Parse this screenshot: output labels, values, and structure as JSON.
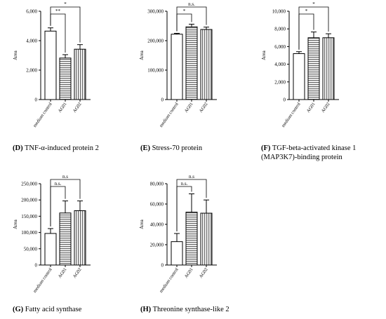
{
  "panels": [
    {
      "letter": "(D)",
      "caption": "TNF-α-induced protein 2",
      "chart_data": {
        "type": "bar",
        "categories": [
          "medium control",
          "AG01",
          "AG02"
        ],
        "values": [
          4650,
          2820,
          3420
        ],
        "errors": [
          220,
          230,
          310
        ],
        "ylabel": "Area",
        "ylim": [
          0,
          6000
        ],
        "yticks": [
          "0",
          "2,000",
          "4,000",
          "6,000"
        ],
        "significance": [
          {
            "from": 0,
            "to": 1,
            "label": "**",
            "level": 1
          },
          {
            "from": 0,
            "to": 2,
            "label": "*",
            "level": 2
          }
        ]
      }
    },
    {
      "letter": "(E)",
      "caption": "Stress-70 protein",
      "chart_data": {
        "type": "bar",
        "categories": [
          "medium control",
          "AG01",
          "AG02"
        ],
        "values": [
          222000,
          247000,
          238000
        ],
        "errors": [
          3000,
          9000,
          8000
        ],
        "ylabel": "Area",
        "ylim": [
          0,
          300000
        ],
        "yticks": [
          "0",
          "100,000",
          "200,000",
          "300,000"
        ],
        "significance": [
          {
            "from": 0,
            "to": 1,
            "label": "*",
            "level": 1
          },
          {
            "from": 0,
            "to": 2,
            "label": "n.s.",
            "level": 2
          }
        ]
      }
    },
    {
      "letter": "(F)",
      "caption": "TGF-beta-activated kinase 1 (MAP3K7)-binding protein",
      "chart_data": {
        "type": "bar",
        "categories": [
          "medium control",
          "AG01",
          "AG02"
        ],
        "values": [
          5200,
          7000,
          7000
        ],
        "errors": [
          220,
          650,
          450
        ],
        "ylabel": "Area",
        "ylim": [
          0,
          10000
        ],
        "yticks": [
          "0",
          "2,000",
          "4,000",
          "6,000",
          "8,000",
          "10,000"
        ],
        "significance": [
          {
            "from": 0,
            "to": 1,
            "label": "*",
            "level": 1
          },
          {
            "from": 0,
            "to": 2,
            "label": "*",
            "level": 2
          }
        ]
      }
    },
    {
      "letter": "(G)",
      "caption": "Fatty acid synthase",
      "chart_data": {
        "type": "bar",
        "categories": [
          "medium control",
          "AG01",
          "AG02"
        ],
        "values": [
          97000,
          160000,
          167000
        ],
        "errors": [
          15000,
          37000,
          30000
        ],
        "ylabel": "Area",
        "ylim": [
          0,
          250000
        ],
        "yticks": [
          "0",
          "50,000",
          "100,000",
          "150,000",
          "200,000",
          "250,000"
        ],
        "significance": [
          {
            "from": 0,
            "to": 1,
            "label": "n.s.",
            "level": 1
          },
          {
            "from": 0,
            "to": 2,
            "label": "n.s",
            "level": 2
          }
        ]
      }
    },
    {
      "letter": "(H)",
      "caption": "Threonine synthase-like 2",
      "chart_data": {
        "type": "bar",
        "categories": [
          "medium control",
          "AG01",
          "AG02"
        ],
        "values": [
          23000,
          52000,
          51000
        ],
        "errors": [
          8000,
          18000,
          13000
        ],
        "ylabel": "Area",
        "ylim": [
          0,
          80000
        ],
        "yticks": [
          "0",
          "20,000",
          "40,000",
          "60,000",
          "80,000"
        ],
        "significance": [
          {
            "from": 0,
            "to": 1,
            "label": "n.s.",
            "level": 1
          },
          {
            "from": 0,
            "to": 2,
            "label": "n.s",
            "level": 2
          }
        ]
      }
    }
  ],
  "colors": {
    "axis": "#000000",
    "bar_fill": "#ffffff",
    "stripe": "#6a6a6a",
    "text": "#000000"
  }
}
